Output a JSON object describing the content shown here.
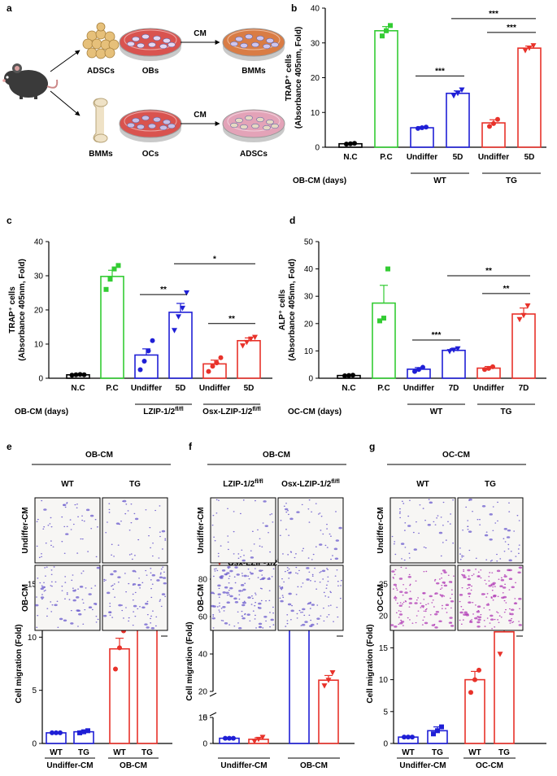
{
  "colors": {
    "nc": "#000000",
    "pc": "#33cc33",
    "wt": "#1f1fd6",
    "tg": "#e8322a",
    "mouse": "#3a3a3a",
    "cells_orange": "#e6c07a",
    "dish_red": "#d9534f",
    "dish_orange": "#d97c45",
    "dish_pink": "#e3a3b8",
    "stain_blue": "#6a5acd",
    "stain_purple": "#b03ab5"
  },
  "panel_letters": {
    "a": "a",
    "b": "b",
    "c": "c",
    "d": "d",
    "e": "e",
    "f": "f",
    "g": "g"
  },
  "schematic": {
    "mouse_icon": "mouse-icon",
    "bone_icon": "bone-icon",
    "cells_icon": "adipose-cells-icon",
    "top_source": "ADSCs",
    "top_dish": "OBs",
    "top_arrow": "CM",
    "top_target": "BMMs",
    "bottom_source": "BMMs",
    "bottom_dish": "OCs",
    "bottom_arrow": "CM",
    "bottom_target": "ADSCs"
  },
  "chart_data": [
    {
      "id": "b",
      "type": "bar",
      "ylabel_line1": "TRAP⁺ cells",
      "ylabel_line2": "(Absorbance 405nm, Fold)",
      "ylim": [
        0,
        40
      ],
      "yticks": [
        0,
        10,
        20,
        30,
        40
      ],
      "categories": [
        "N.C",
        "P.C",
        "Undiffer",
        "5D",
        "Undiffer",
        "5D"
      ],
      "values": [
        1.0,
        33.5,
        5.6,
        15.5,
        7.0,
        28.5
      ],
      "errors": [
        0.2,
        1.2,
        0.3,
        0.7,
        0.9,
        0.6
      ],
      "colors": [
        "nc",
        "pc",
        "wt",
        "wt",
        "tg",
        "tg"
      ],
      "points": [
        [
          0.9,
          1.0,
          1.1
        ],
        [
          32.0,
          33.5,
          35.0
        ],
        [
          5.4,
          5.6,
          5.8
        ],
        [
          14.8,
          15.5,
          16.5
        ],
        [
          6.0,
          6.8,
          8.0
        ],
        [
          27.8,
          28.5,
          29.2
        ]
      ],
      "row_label": "OB-CM (days)",
      "groups": [
        {
          "label": "WT",
          "from": 2,
          "to": 3
        },
        {
          "label": "TG",
          "from": 4,
          "to": 5
        }
      ],
      "significance": [
        {
          "from": 2,
          "to": 3,
          "y": 20.5,
          "label": "***"
        },
        {
          "from": 3,
          "to": 5,
          "y": 37.0,
          "label": "***"
        },
        {
          "from": 4,
          "to": 5,
          "y": 33.0,
          "label": "***"
        }
      ]
    },
    {
      "id": "c",
      "type": "bar",
      "ylabel_line1": "TRAP⁺ cells",
      "ylabel_line2": "(Absorbance 405nm, Fold)",
      "ylim": [
        0,
        40
      ],
      "yticks": [
        0,
        10,
        20,
        30,
        40
      ],
      "categories": [
        "N.C",
        "P.C",
        "Undiffer",
        "5D",
        "Undiffer",
        "5D"
      ],
      "values": [
        1.0,
        29.8,
        6.8,
        19.3,
        4.2,
        11.0
      ],
      "errors": [
        0.1,
        1.8,
        1.8,
        2.6,
        1.1,
        0.8
      ],
      "colors": [
        "nc",
        "pc",
        "wt",
        "wt",
        "tg",
        "tg"
      ],
      "points": [
        [
          0.9,
          1.0,
          1.1,
          1.0
        ],
        [
          26.0,
          29.0,
          32.0,
          33.0
        ],
        [
          2.5,
          5.0,
          8.0,
          11.0
        ],
        [
          14.0,
          18.0,
          20.5,
          25.0
        ],
        [
          2.0,
          3.5,
          4.5,
          6.0
        ],
        [
          9.5,
          10.5,
          11.5,
          12.0
        ]
      ],
      "row_label": "OB-CM (days)",
      "groups": [
        {
          "label": "LZIP-1/2",
          "sup": "fl/fl",
          "from": 2,
          "to": 3
        },
        {
          "label": "Osx-LZIP-1/2",
          "sup": "fl/fl",
          "from": 4,
          "to": 5
        }
      ],
      "significance": [
        {
          "from": 2,
          "to": 3,
          "y": 24.5,
          "label": "**"
        },
        {
          "from": 3,
          "to": 5,
          "y": 33.5,
          "label": "*"
        },
        {
          "from": 4,
          "to": 5,
          "y": 16.0,
          "label": "**"
        }
      ]
    },
    {
      "id": "d",
      "type": "bar",
      "ylabel_line1": "ALP⁺ cells",
      "ylabel_line2": "(Absorbance 405nm, Fold)",
      "ylim": [
        0,
        50
      ],
      "yticks": [
        0,
        10,
        20,
        30,
        40,
        50
      ],
      "categories": [
        "N.C",
        "P.C",
        "Undiffer",
        "7D",
        "Undiffer",
        "7D"
      ],
      "values": [
        1.0,
        27.5,
        3.3,
        10.2,
        3.7,
        23.5
      ],
      "errors": [
        0.1,
        6.5,
        0.6,
        0.6,
        0.6,
        2.2
      ],
      "colors": [
        "nc",
        "pc",
        "wt",
        "wt",
        "tg",
        "tg"
      ],
      "points": [
        [
          0.9,
          1.0,
          1.1
        ],
        [
          21.0,
          22.0,
          40.0
        ],
        [
          2.5,
          3.2,
          4.0
        ],
        [
          9.8,
          10.3,
          10.8
        ],
        [
          3.2,
          3.6,
          4.2
        ],
        [
          21.5,
          23.0,
          26.5
        ]
      ],
      "row_label": "OC-CM (days)",
      "groups": [
        {
          "label": "WT",
          "from": 2,
          "to": 3
        },
        {
          "label": "TG",
          "from": 4,
          "to": 5
        }
      ],
      "significance": [
        {
          "from": 2,
          "to": 3,
          "y": 14.0,
          "label": "***"
        },
        {
          "from": 3,
          "to": 5,
          "y": 37.5,
          "label": "**"
        },
        {
          "from": 4,
          "to": 5,
          "y": 31.0,
          "label": "**"
        }
      ]
    },
    {
      "id": "e",
      "type": "bar",
      "ylabel_line1": "Cell migration (Fold)",
      "ylim": [
        0,
        15
      ],
      "yticks": [
        0,
        5,
        10,
        15
      ],
      "categories": [
        "WT",
        "TG",
        "WT",
        "TG"
      ],
      "values": [
        1.0,
        1.1,
        8.9,
        12.7
      ],
      "errors": [
        0.05,
        0.1,
        1.0,
        0.5
      ],
      "colors": [
        "wt",
        "wt",
        "tg",
        "tg"
      ],
      "points": [
        [
          1.0,
          1.0,
          1.0
        ],
        [
          1.0,
          1.1,
          1.2
        ],
        [
          7.0,
          9.0,
          10.6
        ],
        [
          12.0,
          12.5,
          13.4
        ]
      ],
      "groups": [
        {
          "label": "Undiffer-CM",
          "from": 0,
          "to": 1
        },
        {
          "label": "OB-CM",
          "from": 2,
          "to": 3
        }
      ],
      "significance": [
        {
          "from": 2,
          "to": 3,
          "y": 14.2,
          "label": "*"
        }
      ]
    },
    {
      "id": "f",
      "type": "bar",
      "ylabel_line1": "Cell migration (Fold)",
      "broken_axis": true,
      "yticks": [
        0,
        5,
        10,
        20,
        40,
        60,
        80
      ],
      "categories": [
        "",
        "",
        "",
        ""
      ],
      "values": [
        1.0,
        0.8,
        59.0,
        26.0
      ],
      "errors": [
        0.05,
        0.3,
        1.5,
        2.5
      ],
      "colors": [
        "wt",
        "tg",
        "wt",
        "tg"
      ],
      "markers": [
        "circle",
        "triangle",
        "circle",
        "triangle"
      ],
      "points": [
        [
          1.0,
          1.0,
          1.0
        ],
        [
          0.4,
          0.8,
          1.2
        ],
        [
          57.5,
          59.0,
          61.0
        ],
        [
          23.0,
          26.0,
          30.0
        ]
      ],
      "legend": [
        {
          "label": "LZIP-1/2",
          "sup": "fl/fl",
          "color": "wt",
          "marker": "circle"
        },
        {
          "label": "Osx-LZIP-1/2",
          "sup": "fl/fl",
          "color": "tg",
          "marker": "triangle"
        }
      ],
      "groups": [
        {
          "label": "Undiffer-CM",
          "from": 0,
          "to": 1
        },
        {
          "label": "OB-CM",
          "from": 2,
          "to": 3
        }
      ],
      "significance": [
        {
          "from": 2,
          "to": 3,
          "y": 66.0,
          "label": "**"
        }
      ]
    },
    {
      "id": "g",
      "type": "bar",
      "ylabel_line1": "Cell migration (Fold)",
      "ylim": [
        0,
        25
      ],
      "yticks": [
        0,
        5,
        10,
        15,
        20,
        25
      ],
      "categories": [
        "WT",
        "TG",
        "WT",
        "TG"
      ],
      "values": [
        1.0,
        2.0,
        10.0,
        17.5
      ],
      "errors": [
        0.05,
        0.6,
        1.3,
        2.8
      ],
      "colors": [
        "wt",
        "wt",
        "tg",
        "tg"
      ],
      "points": [
        [
          1.0,
          1.0,
          1.0
        ],
        [
          1.5,
          2.0,
          2.6
        ],
        [
          8.0,
          10.0,
          11.5
        ],
        [
          14.0,
          18.0,
          20.5
        ]
      ],
      "groups": [
        {
          "label": "Undiffer-CM",
          "from": 0,
          "to": 1
        },
        {
          "label": "OC-CM",
          "from": 2,
          "to": 3
        }
      ],
      "significance": [
        {
          "from": 2,
          "to": 3,
          "y": 23.0,
          "label": "*"
        }
      ]
    }
  ],
  "micrographs": [
    {
      "id": "e",
      "title": "OB-CM",
      "columns": [
        "WT",
        "TG"
      ],
      "rows": [
        "Undiffer-CM",
        "OB-CM"
      ],
      "stain": [
        [
          "stain_blue",
          "stain_blue"
        ],
        [
          "stain_blue",
          "stain_blue"
        ]
      ],
      "density": [
        [
          0.35,
          0.3
        ],
        [
          0.55,
          0.6
        ]
      ]
    },
    {
      "id": "f",
      "title": "OB-CM",
      "columns": [
        {
          "label": "LZIP-1/2",
          "sup": "fl/fl"
        },
        {
          "label": "Osx-LZIP-1/2",
          "sup": "fl/fl"
        }
      ],
      "rows": [
        "Undiffer-CM",
        "OB-CM"
      ],
      "stain": [
        [
          "stain_blue",
          "stain_blue"
        ],
        [
          "stain_blue",
          "stain_blue"
        ]
      ],
      "density": [
        [
          0.3,
          0.35
        ],
        [
          0.95,
          0.7
        ]
      ]
    },
    {
      "id": "g",
      "title": "OC-CM",
      "columns": [
        "WT",
        "TG"
      ],
      "rows": [
        "Undiffer-CM",
        "OC-CM"
      ],
      "stain": [
        [
          "stain_blue",
          "stain_blue"
        ],
        [
          "stain_purple",
          "stain_purple"
        ]
      ],
      "density": [
        [
          0.35,
          0.4
        ],
        [
          0.9,
          1.0
        ]
      ]
    }
  ]
}
